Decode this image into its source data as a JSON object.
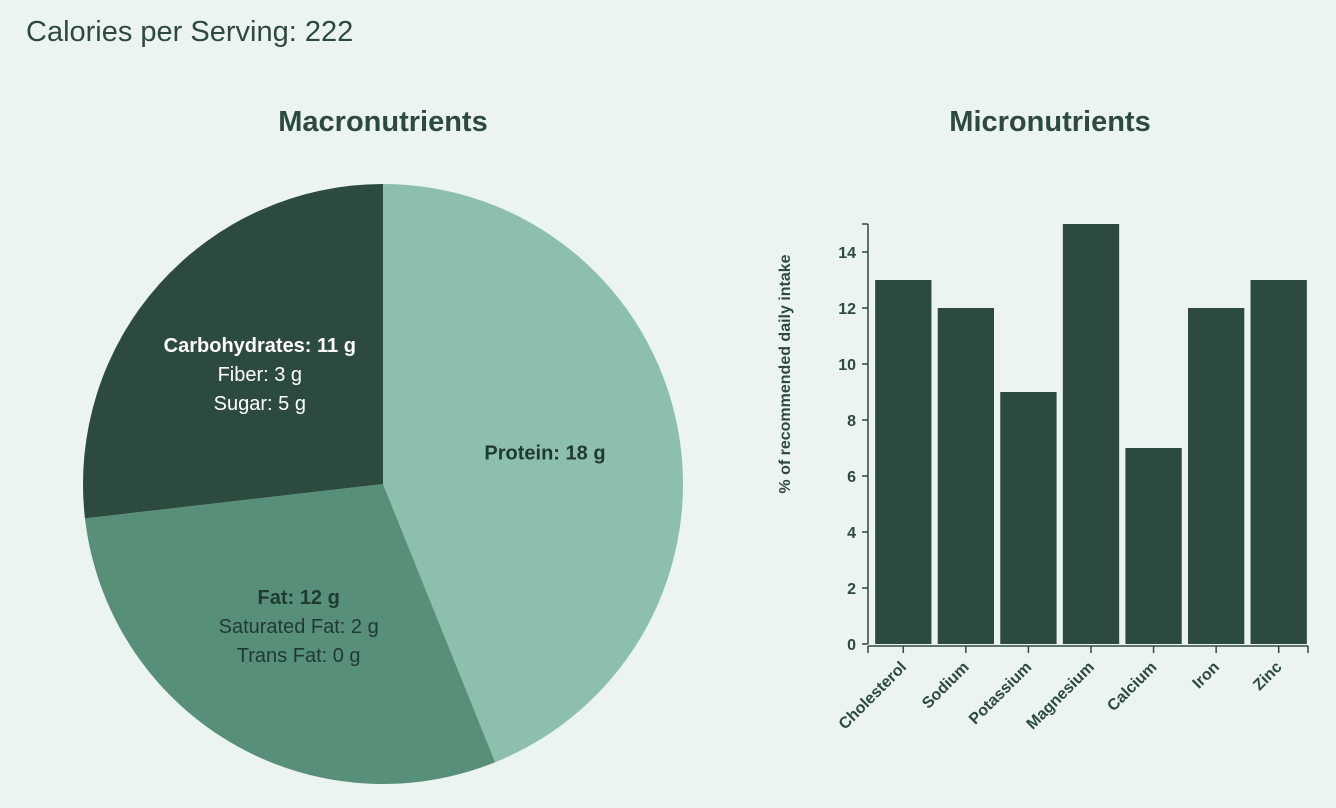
{
  "header": {
    "calories_text": "Calories per Serving: 222"
  },
  "chart_data": [
    {
      "type": "pie",
      "title": "Macronutrients",
      "slices": [
        {
          "name": "Protein",
          "value": 18,
          "label": "Protein: 18 g",
          "details": [],
          "color": "#8cbfad",
          "text_color": "#1f3a30"
        },
        {
          "name": "Fat",
          "value": 12,
          "label": "Fat: 12 g",
          "details": [
            "Saturated Fat: 2 g",
            "Trans Fat: 0 g"
          ],
          "color": "#588f78",
          "text_color": "#1f3a30"
        },
        {
          "name": "Carbohydrates",
          "value": 11,
          "label": "Carbohydrates: 11 g",
          "details": [
            "Fiber: 3 g",
            "Sugar: 5 g"
          ],
          "color": "#2d4a3e",
          "text_color": "#ffffff"
        }
      ]
    },
    {
      "type": "bar",
      "title": "Micronutrients",
      "categories": [
        "Cholesterol",
        "Sodium",
        "Potassium",
        "Magnesium",
        "Calcium",
        "Iron",
        "Zinc"
      ],
      "values": [
        13,
        12,
        9,
        15,
        7,
        12,
        13
      ],
      "ylabel": "% of recommended daily intake",
      "xlabel": "",
      "ylim": [
        0,
        15
      ],
      "yticks": [
        0,
        2,
        4,
        6,
        8,
        10,
        12,
        14
      ],
      "bar_color": "#2d4a3e"
    }
  ]
}
